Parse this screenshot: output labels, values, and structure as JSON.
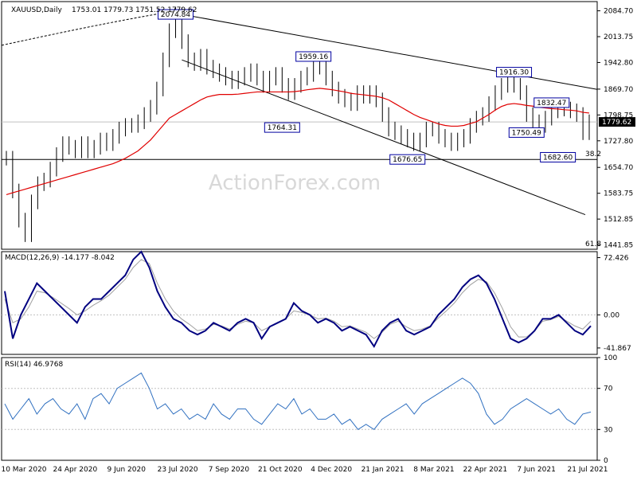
{
  "header": {
    "symbol": "XAUUSD,Daily",
    "ohlc": "1753.01 1779.73 1751.52 1779.62"
  },
  "watermark": "ActionForex.com",
  "colors": {
    "price": "#000000",
    "sma": "#e00000",
    "macd": "#000080",
    "signal": "#a0a0a0",
    "rsi": "#3070c0",
    "label_border": "#0000a0",
    "grid": "#c0c0c0"
  },
  "chart_data": [
    {
      "type": "candlestick",
      "title": "XAUUSD,Daily",
      "ylim": [
        1430,
        2110
      ],
      "y_ticks": [
        "2084.70",
        "2013.75",
        "1942.80",
        "1869.70",
        "1798.75",
        "1727.80",
        "1654.70",
        "1583.75",
        "1512.85",
        "1441.85"
      ],
      "x_ticks": [
        "10 Mar 2020",
        "24 Apr 2020",
        "9 Jun 2020",
        "23 Jul 2020",
        "7 Sep 2020",
        "21 Oct 2020",
        "4 Dec 2020",
        "21 Jan 2021",
        "8 Mar 2021",
        "22 Apr 2021",
        "7 Jun 2021",
        "21 Jul 2021"
      ],
      "current_price": "1779.62",
      "close": [
        1680,
        1590,
        1510,
        1470,
        1560,
        1610,
        1620,
        1650,
        1690,
        1720,
        1710,
        1700,
        1720,
        1700,
        1710,
        1730,
        1720,
        1740,
        1760,
        1770,
        1770,
        1780,
        1800,
        1820,
        1870,
        1950,
        2030,
        2074,
        2000,
        1950,
        1940,
        1960,
        1930,
        1920,
        1910,
        1900,
        1890,
        1900,
        1910,
        1920,
        1900,
        1880,
        1900,
        1910,
        1880,
        1860,
        1880,
        1900,
        1910,
        1930,
        1950,
        1900,
        1870,
        1850,
        1840,
        1830,
        1860,
        1850,
        1860,
        1840,
        1800,
        1760,
        1750,
        1740,
        1730,
        1720,
        1730,
        1760,
        1760,
        1740,
        1730,
        1720,
        1730,
        1740,
        1770,
        1790,
        1800,
        1830,
        1860,
        1880,
        1890,
        1880,
        1860,
        1800,
        1780,
        1770,
        1790,
        1810,
        1820,
        1815,
        1810,
        1800,
        1750,
        1780
      ],
      "sma_100": [
        1580,
        1585,
        1590,
        1595,
        1600,
        1605,
        1610,
        1615,
        1620,
        1625,
        1630,
        1635,
        1640,
        1645,
        1650,
        1655,
        1660,
        1665,
        1672,
        1680,
        1690,
        1700,
        1715,
        1730,
        1750,
        1770,
        1790,
        1800,
        1810,
        1820,
        1830,
        1840,
        1848,
        1852,
        1855,
        1855,
        1855,
        1856,
        1858,
        1860,
        1862,
        1862,
        1862,
        1862,
        1862,
        1862,
        1863,
        1865,
        1868,
        1870,
        1872,
        1870,
        1868,
        1865,
        1862,
        1858,
        1856,
        1854,
        1852,
        1850,
        1846,
        1840,
        1830,
        1820,
        1810,
        1800,
        1792,
        1786,
        1780,
        1774,
        1770,
        1768,
        1768,
        1770,
        1775,
        1780,
        1790,
        1800,
        1812,
        1822,
        1828,
        1830,
        1828,
        1825,
        1823,
        1820,
        1818,
        1816,
        1815,
        1813,
        1812,
        1810,
        1806,
        1804
      ],
      "annotations": [
        {
          "label": "2074.84",
          "value": 2074.84
        },
        {
          "label": "1959.16",
          "value": 1959.16
        },
        {
          "label": "1916.30",
          "value": 1916.3
        },
        {
          "label": "1832.47",
          "value": 1832.47
        },
        {
          "label": "1764.31",
          "value": 1764.31
        },
        {
          "label": "1750.49",
          "value": 1750.49
        },
        {
          "label": "1676.65",
          "value": 1676.65
        },
        {
          "label": "1682.60",
          "value": 1682.6
        }
      ],
      "fib_labels": [
        "38.2",
        "61.8"
      ]
    },
    {
      "type": "line",
      "title": "MACD(12,26,9) -14.177 -8.042",
      "ylim": [
        -50,
        80
      ],
      "y_ticks": [
        "72.426",
        "0.00",
        "-41.867"
      ],
      "series": [
        {
          "values": [
            30,
            -30,
            0,
            20,
            40,
            30,
            20,
            10,
            0,
            -10,
            10,
            20,
            20,
            30,
            40,
            50,
            70,
            80,
            60,
            30,
            10,
            -5,
            -10,
            -20,
            -25,
            -20,
            -10,
            -15,
            -20,
            -10,
            -5,
            -10,
            -30,
            -15,
            -10,
            -5,
            15,
            5,
            0,
            -10,
            -5,
            -10,
            -20,
            -15,
            -20,
            -25,
            -40,
            -20,
            -10,
            -5,
            -20,
            -25,
            -20,
            -15,
            0,
            10,
            20,
            35,
            45,
            50,
            40,
            20,
            -5,
            -30,
            -35,
            -30,
            -20,
            -5,
            -5,
            0,
            -10,
            -20,
            -25,
            -14
          ]
        },
        {
          "values": [
            20,
            -10,
            -5,
            10,
            30,
            28,
            22,
            15,
            8,
            0,
            5,
            12,
            18,
            25,
            35,
            45,
            60,
            70,
            65,
            40,
            20,
            5,
            -5,
            -12,
            -20,
            -18,
            -12,
            -14,
            -18,
            -12,
            -8,
            -10,
            -20,
            -15,
            -10,
            -5,
            5,
            3,
            0,
            -5,
            -4,
            -8,
            -15,
            -14,
            -18,
            -22,
            -30,
            -22,
            -12,
            -8,
            -15,
            -20,
            -18,
            -14,
            -4,
            5,
            15,
            28,
            38,
            45,
            42,
            28,
            8,
            -15,
            -28,
            -28,
            -20,
            -8,
            -6,
            -2,
            -8,
            -14,
            -18,
            -8
          ]
        }
      ]
    },
    {
      "type": "line",
      "title": "RSI(14) 46.9768",
      "ylim": [
        0,
        100
      ],
      "y_ticks": [
        "100",
        "70",
        "30",
        "0"
      ],
      "series": [
        {
          "values": [
            55,
            40,
            50,
            60,
            45,
            55,
            60,
            50,
            45,
            55,
            40,
            60,
            65,
            55,
            70,
            75,
            80,
            85,
            70,
            50,
            55,
            45,
            50,
            40,
            45,
            40,
            55,
            45,
            40,
            50,
            50,
            40,
            35,
            45,
            55,
            50,
            60,
            45,
            50,
            40,
            40,
            45,
            35,
            40,
            30,
            35,
            30,
            40,
            45,
            50,
            55,
            45,
            55,
            60,
            65,
            70,
            75,
            80,
            75,
            65,
            45,
            35,
            40,
            50,
            55,
            60,
            55,
            50,
            45,
            50,
            40,
            35,
            45,
            47
          ]
        }
      ]
    }
  ]
}
